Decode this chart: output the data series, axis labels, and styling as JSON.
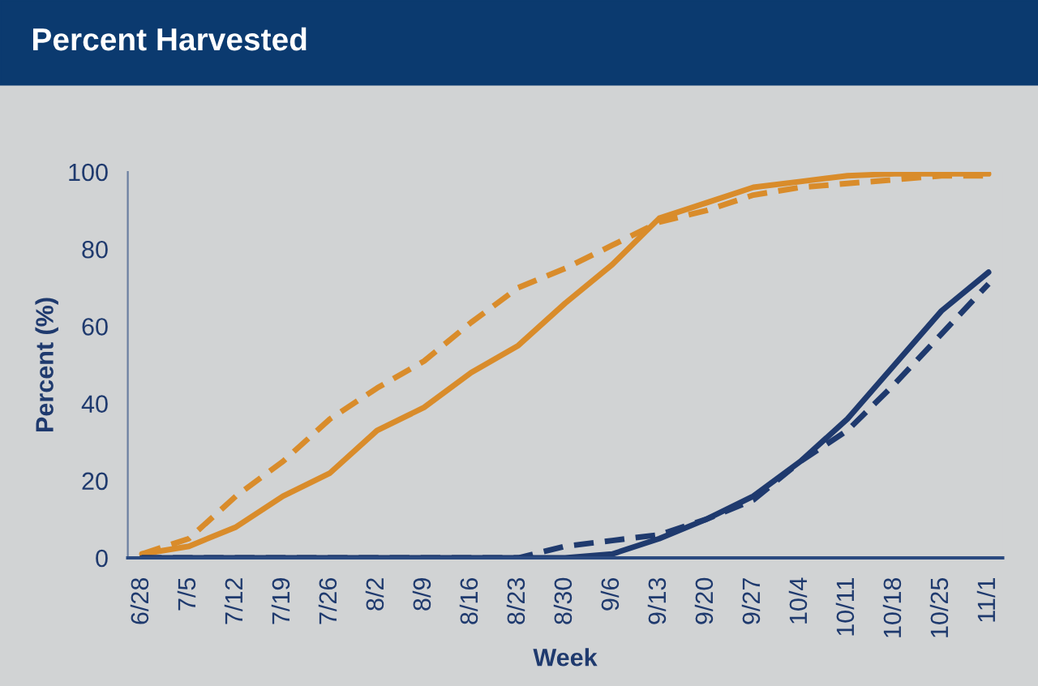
{
  "chart_data": {
    "type": "line",
    "title": "Percent Harvested",
    "xlabel": "Week",
    "ylabel": "Percent (%)",
    "categories": [
      "6/28",
      "7/5",
      "7/12",
      "7/19",
      "7/26",
      "8/2",
      "8/9",
      "8/16",
      "8/23",
      "8/30",
      "9/6",
      "9/13",
      "9/20",
      "9/27",
      "10/4",
      "10/11",
      "10/18",
      "10/25",
      "11/1"
    ],
    "series": [
      {
        "color": "#d98c2b",
        "line_style": "solid",
        "values": [
          1,
          3,
          8,
          16,
          22,
          33,
          39,
          48,
          55,
          66,
          76,
          88,
          92,
          96,
          97.5,
          99,
          99.5,
          99.5,
          99.5
        ]
      },
      {
        "color": "#d98c2b",
        "line_style": "dashed",
        "values": [
          1,
          5,
          16,
          25,
          36,
          44,
          51,
          61,
          70,
          75,
          81,
          87,
          90,
          94,
          96,
          97,
          98,
          99,
          99
        ]
      },
      {
        "color": "#1f3a6e",
        "line_style": "solid",
        "values": [
          0,
          0,
          0,
          0,
          0,
          0,
          0,
          0,
          0,
          0,
          1,
          5,
          10,
          16,
          25,
          36,
          50,
          64,
          74
        ]
      },
      {
        "color": "#1f3a6e",
        "line_style": "dashed",
        "values": [
          0,
          0,
          0,
          0,
          0,
          0,
          0,
          0,
          0,
          3,
          4.5,
          6,
          10,
          15,
          25,
          33,
          45,
          58,
          71
        ]
      }
    ],
    "ylim": [
      0,
      100
    ],
    "yticks": [
      0,
      20,
      40,
      60,
      80,
      100
    ],
    "grid": false,
    "legend": false,
    "marker": "none"
  }
}
